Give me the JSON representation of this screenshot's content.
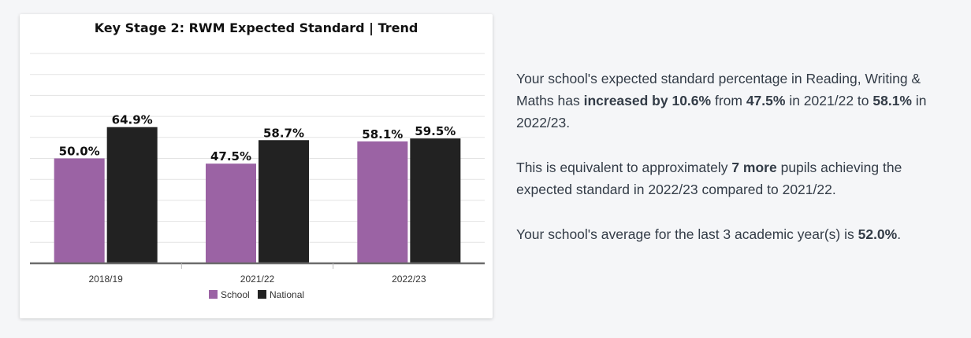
{
  "chart_data": {
    "type": "bar",
    "title": "Key Stage 2: RWM Expected Standard | Trend",
    "categories": [
      "2018/19",
      "2021/22",
      "2022/23"
    ],
    "series": [
      {
        "name": "School",
        "values": [
          50.0,
          47.5,
          58.1
        ],
        "labels": [
          "50.0%",
          "47.5%",
          "58.1%"
        ],
        "color": "#9b63a4"
      },
      {
        "name": "National",
        "values": [
          64.9,
          58.7,
          59.5
        ],
        "labels": [
          "64.9%",
          "58.7%",
          "59.5%"
        ],
        "color": "#222222"
      }
    ],
    "ylim": [
      0,
      100
    ],
    "grid": true,
    "legend": "bottom",
    "xlabel": "",
    "ylabel": ""
  },
  "summary": {
    "p1": {
      "t1": "Your school's expected standard percentage in Reading, Writing & Maths has ",
      "b1": "increased by 10.6%",
      "t2": " from ",
      "b2": "47.5%",
      "t3": " in 2021/22 to ",
      "b3": "58.1%",
      "t4": " in 2022/23."
    },
    "p2": {
      "t1": "This is equivalent to approximately ",
      "b1": "7 more",
      "t2": " pupils achieving the expected standard in 2022/23 compared to 2021/22."
    },
    "p3": {
      "t1": "Your school's average for the last 3 academic year(s) is ",
      "b1": "52.0%",
      "t2": "."
    }
  }
}
